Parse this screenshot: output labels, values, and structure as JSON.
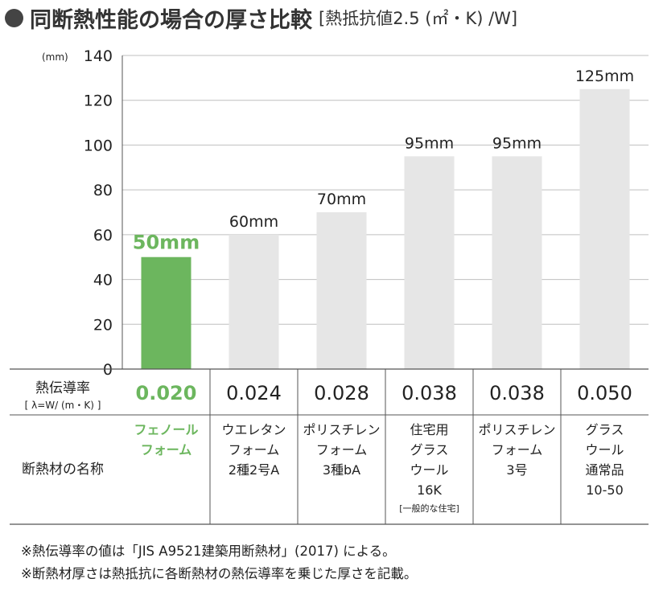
{
  "title": {
    "main": "同断熱性能の場合の厚さ比較",
    "sub": "[熱抵抗値2.5 (㎡・K) /W]"
  },
  "colors": {
    "highlight": "#6cb65e",
    "bar": "#e6e6e6",
    "grid": "#bfbfbf",
    "text": "#222222",
    "title_bullet": "#444444"
  },
  "chart_data": {
    "type": "bar",
    "unit_label": "(mm)",
    "ylim": [
      0,
      140
    ],
    "yticks": [
      0,
      20,
      40,
      60,
      80,
      100,
      120,
      140
    ],
    "grid": true,
    "categories": [
      "フェノールフォーム",
      "ウエレタンフォーム2種2号A",
      "ポリスチレンフォーム3種bA",
      "住宅用グラスウール16K",
      "ポリスチレンフォーム3号",
      "グラスウール通常品10-50"
    ],
    "values": [
      50,
      60,
      70,
      95,
      95,
      125
    ],
    "value_labels": [
      "50mm",
      "60mm",
      "70mm",
      "95mm",
      "95mm",
      "125mm"
    ],
    "highlight_index": 0
  },
  "table": {
    "conductivity_header": "熱伝導率",
    "conductivity_unit": "[ λ=W/ (m・K) ]",
    "conductivity_values": [
      "0.020",
      "0.024",
      "0.028",
      "0.038",
      "0.038",
      "0.050"
    ],
    "name_header": "断熱材の名称",
    "names": [
      {
        "lines": [
          "フェノール",
          "フォーム"
        ],
        "note": ""
      },
      {
        "lines": [
          "ウエレタン",
          "フォーム",
          "2種2号A"
        ],
        "note": ""
      },
      {
        "lines": [
          "ポリスチレン",
          "フォーム",
          "3種bA"
        ],
        "note": ""
      },
      {
        "lines": [
          "住宅用",
          "グラス",
          "ウール",
          "16K"
        ],
        "note": "[一般的な住宅]"
      },
      {
        "lines": [
          "ポリスチレン",
          "フォーム",
          "3号"
        ],
        "note": ""
      },
      {
        "lines": [
          "グラス",
          "ウール",
          "通常品",
          "10-50"
        ],
        "note": ""
      }
    ]
  },
  "notes": [
    "※熱伝導率の値は「JIS A9521建築用断熱材」(2017) による。",
    "※断熱材厚さは熱抵抗に各断熱材の熱伝導率を乗じた厚さを記載。"
  ]
}
